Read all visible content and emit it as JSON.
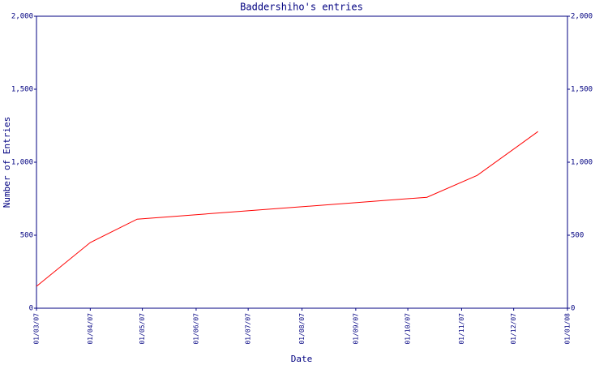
{
  "chart_data": {
    "type": "line",
    "title": "Baddershiho's entries",
    "x_label": "Date",
    "y_label": "Number of Entries",
    "x": [
      "2007-03-01",
      "2007-04-01",
      "2007-04-28",
      "2007-10-12",
      "2007-11-10",
      "2007-12-15"
    ],
    "series": [
      {
        "name": "Entries",
        "color": "#ff0000",
        "values": [
          150,
          450,
          610,
          760,
          910,
          1210
        ]
      }
    ],
    "xlim": [
      "2007-03-01",
      "2008-01-01"
    ],
    "xticks": [
      {
        "value": "2007-03-01",
        "label": "01/03/07"
      },
      {
        "value": "2007-04-01",
        "label": "01/04/07"
      },
      {
        "value": "2007-05-01",
        "label": "01/05/07"
      },
      {
        "value": "2007-06-01",
        "label": "01/06/07"
      },
      {
        "value": "2007-07-01",
        "label": "01/07/07"
      },
      {
        "value": "2007-08-01",
        "label": "01/08/07"
      },
      {
        "value": "2007-09-01",
        "label": "01/09/07"
      },
      {
        "value": "2007-10-01",
        "label": "01/10/07"
      },
      {
        "value": "2007-11-01",
        "label": "01/11/07"
      },
      {
        "value": "2007-12-01",
        "label": "01/12/07"
      },
      {
        "value": "2008-01-01",
        "label": "01/01/08"
      }
    ],
    "ylim": [
      0,
      2000
    ],
    "yticks": [
      0,
      500,
      {
        "value": 1000,
        "label": "1,000"
      },
      {
        "value": 1500,
        "label": "1,500"
      },
      {
        "value": 2000,
        "label": "2,000"
      }
    ],
    "axis_color": "#000080"
  }
}
